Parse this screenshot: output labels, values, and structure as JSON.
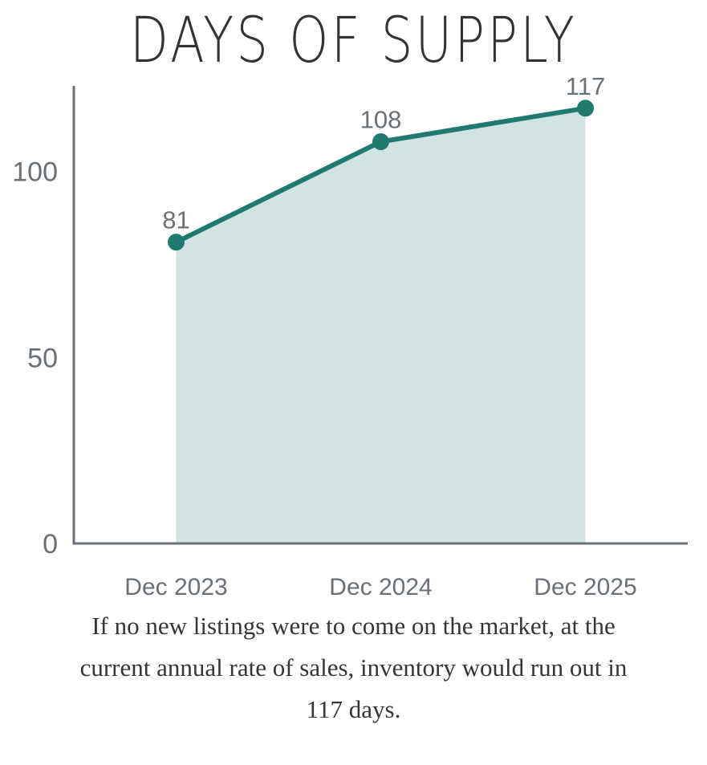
{
  "chart_data": {
    "type": "area",
    "title": "DAYS OF SUPPLY",
    "categories": [
      "Dec 2023",
      "Dec 2024",
      "Dec 2025"
    ],
    "values": [
      81,
      108,
      117
    ],
    "point_labels": [
      "81",
      "108",
      "117"
    ],
    "xlabel": "",
    "ylabel": "",
    "ylim": [
      0,
      123
    ],
    "yticks": [
      0,
      50,
      100
    ],
    "grid": false,
    "legend": false,
    "colors": {
      "line": "#207a70",
      "marker": "#207a70",
      "fill": "#d2e4e1",
      "axis": "#6a7078",
      "tick_label": "#6a7078",
      "point_label": "#6a7078",
      "title": "#333333",
      "caption": "#363636"
    }
  },
  "caption": {
    "text": "If no new listings were to come on the market, at the current annual rate of sales, inventory would run out in 117 days.",
    "lines": [
      "If no new listings were to come on the market, at the",
      "current annual rate of sales, inventory would run out in",
      "117 days."
    ]
  }
}
